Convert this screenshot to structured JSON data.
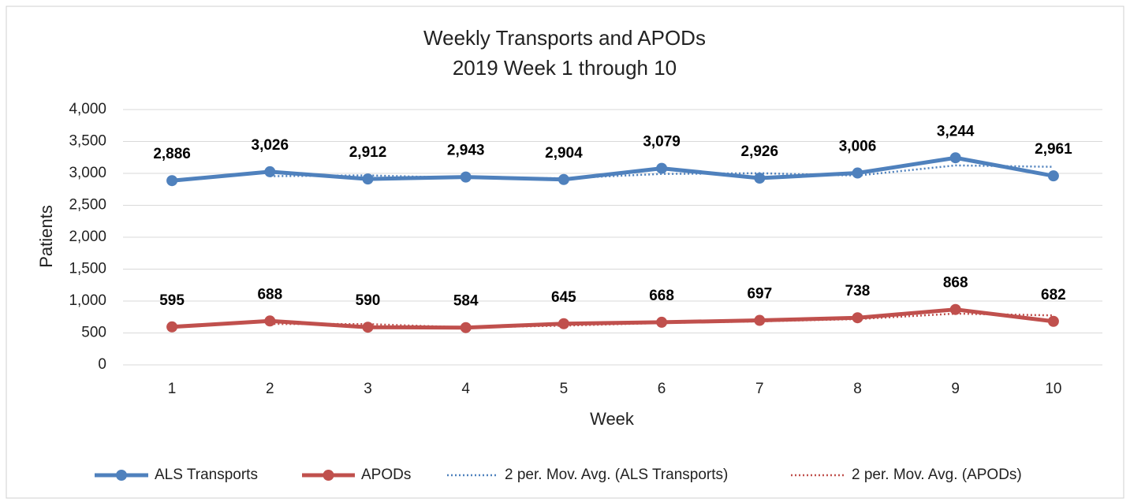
{
  "chart_data": {
    "type": "line",
    "title": "Weekly Transports and APODs",
    "subtitle": "2019 Week 1 through 10",
    "x_label": "Week",
    "y_label": "Patients",
    "categories": [
      "1",
      "2",
      "3",
      "4",
      "5",
      "6",
      "7",
      "8",
      "9",
      "10"
    ],
    "series": [
      {
        "name": "ALS Transports",
        "color": "#4f81bd",
        "style": "solid",
        "markers": true,
        "values": [
          2886,
          3026,
          2912,
          2943,
          2904,
          3079,
          2926,
          3006,
          3244,
          2961
        ],
        "value_labels": [
          "2,886",
          "3,026",
          "2,912",
          "2,943",
          "2,904",
          "3,079",
          "2,926",
          "3,006",
          "3,244",
          "2,961"
        ]
      },
      {
        "name": "APODs",
        "color": "#c0504d",
        "style": "solid",
        "markers": true,
        "values": [
          595,
          688,
          590,
          584,
          645,
          668,
          697,
          738,
          868,
          682
        ]
      },
      {
        "name": "2 per. Mov. Avg. (ALS Transports)",
        "color": "#4f81bd",
        "style": "dotted",
        "markers": false,
        "values": [
          null,
          2956,
          2969,
          2927.5,
          2923.5,
          2991.5,
          3002.5,
          2966,
          3125,
          3102.5
        ]
      },
      {
        "name": "2 per. Mov. Avg. (APODs)",
        "color": "#c0504d",
        "style": "dotted",
        "markers": false,
        "values": [
          null,
          641.5,
          639,
          587,
          614.5,
          656.5,
          682.5,
          717.5,
          803,
          775
        ]
      }
    ],
    "ylim": [
      0,
      4000
    ],
    "yticks": [
      0,
      {
        "value": 500,
        "label": "500"
      },
      {
        "value": 1000,
        "label": "1,000"
      },
      {
        "value": 1500,
        "label": "1,500"
      },
      {
        "value": 2000,
        "label": "2,000"
      },
      {
        "value": 2500,
        "label": "2,500"
      },
      {
        "value": 3000,
        "label": "3,000"
      },
      {
        "value": 3500,
        "label": "3,500"
      },
      {
        "value": 4000,
        "label": "4,000"
      }
    ],
    "grid": true,
    "legend": "bottom"
  }
}
